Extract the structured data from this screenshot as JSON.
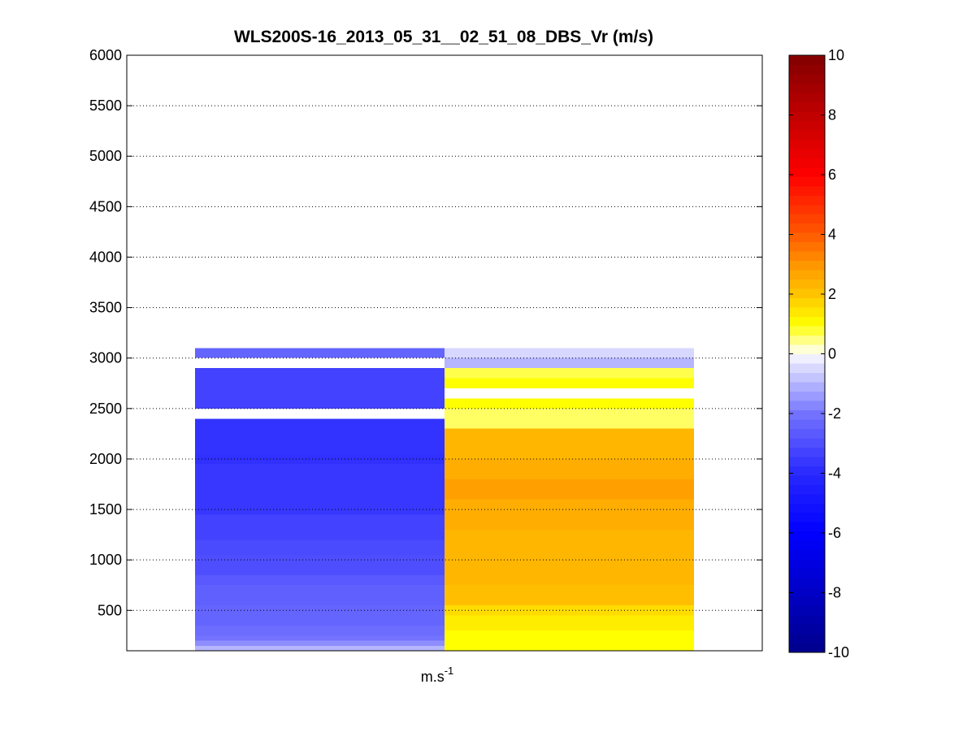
{
  "chart_data": {
    "type": "heatmap",
    "title": "WLS200S-16_2013_05_31__02_51_08_DBS_Vr (m/s)",
    "xlabel": "m.s",
    "xlabel_superscript": "-1",
    "ylabel": "",
    "ylim": [
      100,
      6000
    ],
    "yticks": [
      500,
      1000,
      1500,
      2000,
      2500,
      3000,
      3500,
      4000,
      4500,
      5000,
      5500,
      6000
    ],
    "grid": "y-dotted",
    "colorbar": {
      "clim": [
        -10,
        10
      ],
      "ticks": [
        -10,
        -8,
        -6,
        -4,
        -2,
        0,
        2,
        4,
        6,
        8,
        10
      ],
      "colormap": "blue-white-red (jet-like)"
    },
    "columns": 2,
    "altitude_bin_m": 50,
    "series": [
      {
        "segments": [
          [
            100,
            150,
            -1.0
          ],
          [
            150,
            200,
            -1.6
          ],
          [
            200,
            250,
            -2.0
          ],
          [
            250,
            350,
            -2.2
          ],
          [
            350,
            450,
            -2.4
          ],
          [
            450,
            550,
            -2.4
          ],
          [
            550,
            750,
            -2.5
          ],
          [
            750,
            850,
            -2.7
          ],
          [
            850,
            1050,
            -3.0
          ],
          [
            1050,
            1200,
            -3.1
          ],
          [
            1200,
            1450,
            -3.3
          ],
          [
            1450,
            1950,
            -3.6
          ],
          [
            1950,
            2050,
            -3.8
          ],
          [
            2050,
            2400,
            -3.7
          ],
          [
            2500,
            2900,
            -3.3
          ],
          [
            3000,
            3100,
            -2.4
          ]
        ]
      },
      {
        "segments": [
          [
            100,
            300,
            1.0
          ],
          [
            300,
            450,
            1.3
          ],
          [
            450,
            550,
            1.6
          ],
          [
            550,
            750,
            2.1
          ],
          [
            750,
            1100,
            2.3
          ],
          [
            1100,
            1300,
            2.3
          ],
          [
            1300,
            1500,
            2.5
          ],
          [
            1500,
            1600,
            2.5
          ],
          [
            1600,
            1800,
            2.8
          ],
          [
            1800,
            2000,
            2.5
          ],
          [
            2000,
            2300,
            2.3
          ],
          [
            2300,
            2500,
            0.6
          ],
          [
            2500,
            2600,
            1.0
          ],
          [
            2700,
            2800,
            1.0
          ],
          [
            2800,
            2900,
            0.7
          ],
          [
            2900,
            3000,
            -1.0
          ],
          [
            3000,
            3100,
            -0.5
          ]
        ]
      }
    ]
  }
}
